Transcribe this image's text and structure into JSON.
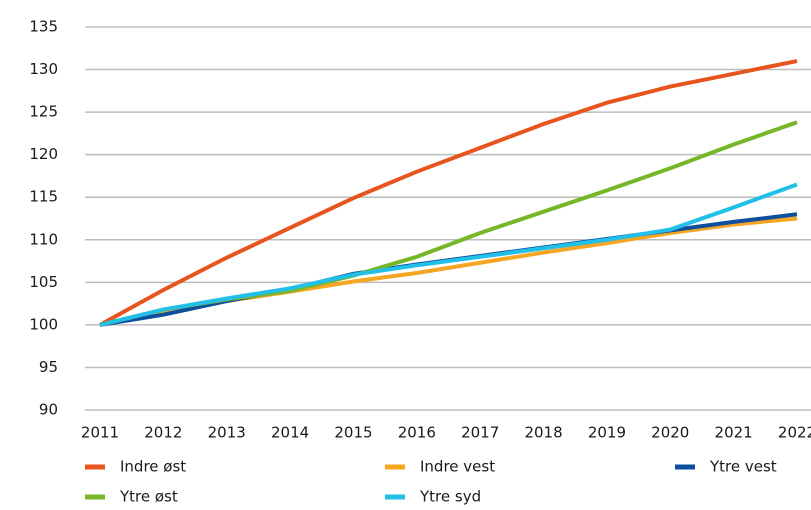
{
  "chart_data": {
    "type": "line",
    "categories": [
      "2011",
      "2012",
      "2013",
      "2014",
      "2015",
      "2016",
      "2017",
      "2018",
      "2019",
      "2020",
      "2021",
      "2022"
    ],
    "series": [
      {
        "name": "Indre øst",
        "color": "#e8541e",
        "values": [
          100,
          104.1,
          107.9,
          111.4,
          114.9,
          118,
          120.8,
          123.6,
          126.1,
          128,
          129.5,
          131
        ]
      },
      {
        "name": "Indre vest",
        "color": "#f5a623",
        "values": [
          100,
          101.4,
          102.8,
          103.9,
          105.1,
          106.1,
          107.3,
          108.5,
          109.6,
          110.8,
          111.8,
          112.5
        ]
      },
      {
        "name": "Ytre vest",
        "color": "#0d4f9e",
        "values": [
          100,
          101.2,
          102.8,
          104.2,
          106,
          107.1,
          108.1,
          109.1,
          110.1,
          111.1,
          112.1,
          113
        ]
      },
      {
        "name": "Ytre øst",
        "color": "#76b72a",
        "values": [
          100,
          101.8,
          103,
          104,
          105.8,
          108,
          110.8,
          113.3,
          115.8,
          118.4,
          121.2,
          123.8
        ]
      },
      {
        "name": "Ytre syd",
        "color": "#22c0e8",
        "values": [
          100,
          101.8,
          103.1,
          104.3,
          105.9,
          107,
          108,
          109,
          110,
          111.2,
          113.8,
          116.5
        ]
      }
    ],
    "ylim": [
      90,
      135
    ],
    "yticks": [
      90,
      95,
      100,
      105,
      110,
      115,
      120,
      125,
      130,
      135
    ],
    "grid": true
  }
}
